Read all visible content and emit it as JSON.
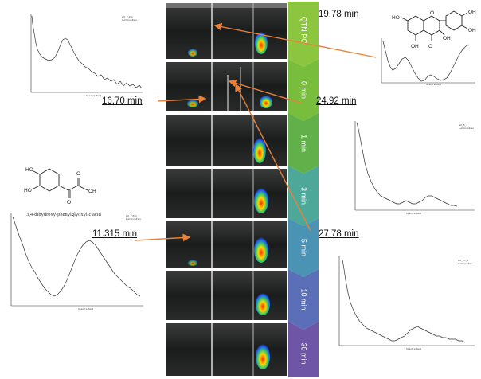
{
  "retention_labels": {
    "t1": "19.78  min",
    "t2": "16.70  min",
    "t3": "24.92  min",
    "t4": "11.315 min",
    "t5": "27.78  min"
  },
  "compound_caption": "3,4-dihydroxy-phenylglyoxylic acid",
  "timeline_steps": [
    {
      "label": "QTN PO"
    },
    {
      "label": "0 min"
    },
    {
      "label": "1 min"
    },
    {
      "label": "3 min"
    },
    {
      "label": "5 min"
    },
    {
      "label": "10 min"
    },
    {
      "label": "30 min"
    }
  ],
  "colors": {
    "arrow_orange": "#E8823A",
    "timeline": [
      "#8CC63F",
      "#78BE3C",
      "#62B04A",
      "#4EA89A",
      "#4A93B4",
      "#5B6FB8",
      "#6E55A6"
    ]
  }
}
